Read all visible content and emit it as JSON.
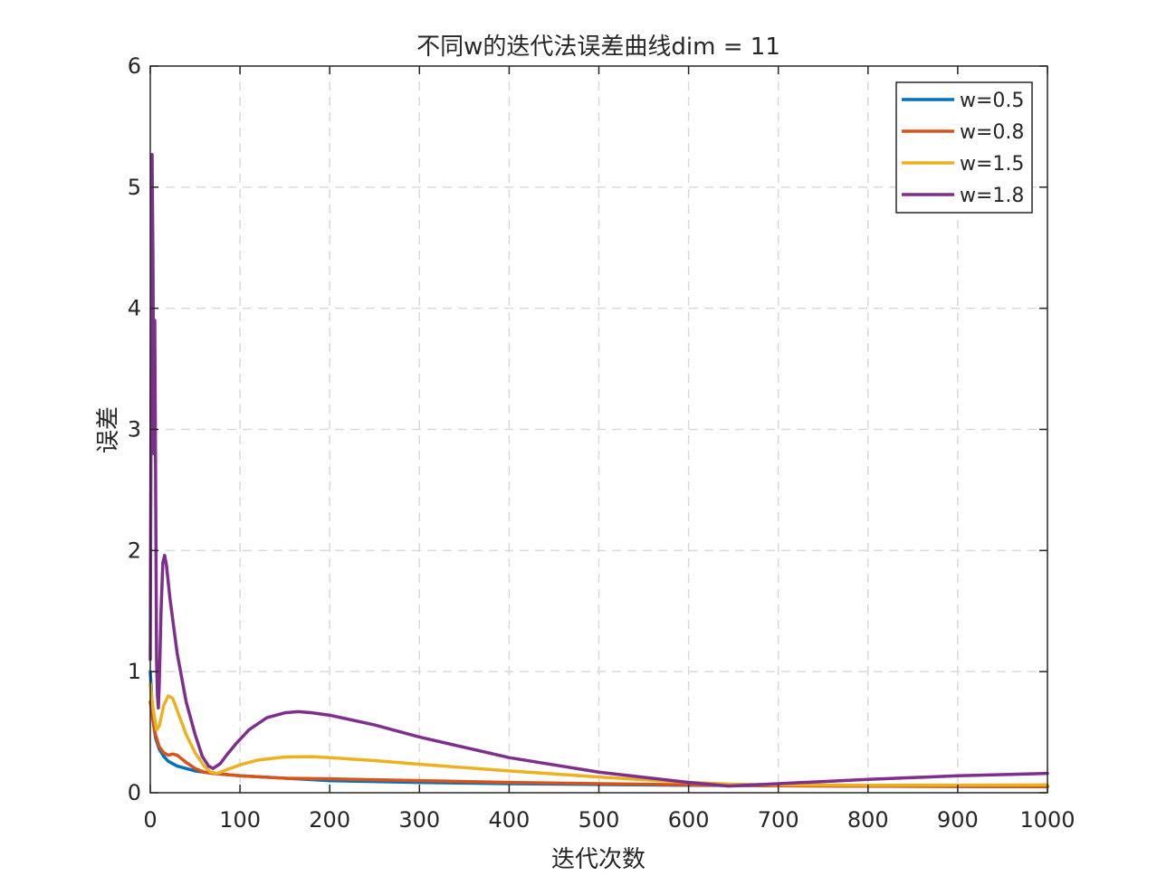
{
  "chart_data": {
    "type": "line",
    "title": "不同w的迭代法误差曲线dim = 11",
    "xlabel": "迭代次数",
    "ylabel": "误差",
    "xlim": [
      0,
      1000
    ],
    "ylim": [
      0,
      6
    ],
    "xticks": [
      "0",
      "100",
      "200",
      "300",
      "400",
      "500",
      "600",
      "700",
      "800",
      "900",
      "1000"
    ],
    "yticks": [
      "0",
      "1",
      "2",
      "3",
      "4",
      "5",
      "6"
    ],
    "grid": true,
    "legend_position": "top-right",
    "series": [
      {
        "name": "w=0.5",
        "color": "#0072BD",
        "points": [
          [
            0,
            1.0
          ],
          [
            3,
            0.6
          ],
          [
            6,
            0.45
          ],
          [
            10,
            0.36
          ],
          [
            15,
            0.3
          ],
          [
            20,
            0.26
          ],
          [
            30,
            0.22
          ],
          [
            40,
            0.2
          ],
          [
            50,
            0.18
          ],
          [
            70,
            0.16
          ],
          [
            100,
            0.14
          ],
          [
            150,
            0.12
          ],
          [
            200,
            0.1
          ],
          [
            300,
            0.085
          ],
          [
            400,
            0.075
          ],
          [
            500,
            0.068
          ],
          [
            600,
            0.062
          ],
          [
            700,
            0.058
          ],
          [
            800,
            0.055
          ],
          [
            900,
            0.052
          ],
          [
            1000,
            0.05
          ]
        ]
      },
      {
        "name": "w=0.8",
        "color": "#D95319",
        "points": [
          [
            0,
            0.75
          ],
          [
            5,
            0.5
          ],
          [
            10,
            0.38
          ],
          [
            15,
            0.33
          ],
          [
            20,
            0.31
          ],
          [
            25,
            0.32
          ],
          [
            30,
            0.31
          ],
          [
            40,
            0.25
          ],
          [
            50,
            0.2
          ],
          [
            60,
            0.17
          ],
          [
            70,
            0.16
          ],
          [
            100,
            0.14
          ],
          [
            150,
            0.12
          ],
          [
            200,
            0.115
          ],
          [
            300,
            0.1
          ],
          [
            400,
            0.085
          ],
          [
            500,
            0.075
          ],
          [
            600,
            0.065
          ],
          [
            700,
            0.058
          ],
          [
            800,
            0.054
          ],
          [
            900,
            0.052
          ],
          [
            1000,
            0.05
          ]
        ]
      },
      {
        "name": "w=1.5",
        "color": "#EDB120",
        "points": [
          [
            0,
            0.9
          ],
          [
            3,
            0.7
          ],
          [
            7,
            0.52
          ],
          [
            10,
            0.55
          ],
          [
            15,
            0.72
          ],
          [
            20,
            0.8
          ],
          [
            25,
            0.78
          ],
          [
            30,
            0.68
          ],
          [
            40,
            0.48
          ],
          [
            50,
            0.33
          ],
          [
            60,
            0.22
          ],
          [
            67,
            0.17
          ],
          [
            75,
            0.16
          ],
          [
            85,
            0.19
          ],
          [
            100,
            0.23
          ],
          [
            120,
            0.27
          ],
          [
            150,
            0.295
          ],
          [
            180,
            0.298
          ],
          [
            200,
            0.29
          ],
          [
            250,
            0.265
          ],
          [
            300,
            0.235
          ],
          [
            400,
            0.18
          ],
          [
            500,
            0.13
          ],
          [
            600,
            0.085
          ],
          [
            650,
            0.07
          ],
          [
            700,
            0.065
          ],
          [
            800,
            0.062
          ],
          [
            900,
            0.063
          ],
          [
            1000,
            0.065
          ]
        ]
      },
      {
        "name": "w=1.8",
        "color": "#7E2F8E",
        "points": [
          [
            0,
            1.1
          ],
          [
            1,
            3.5
          ],
          [
            2,
            5.27
          ],
          [
            3,
            4.4
          ],
          [
            4,
            2.8
          ],
          [
            5,
            3.9
          ],
          [
            6,
            2.5
          ],
          [
            7,
            1.1
          ],
          [
            8,
            0.8
          ],
          [
            9,
            0.7
          ],
          [
            10,
            0.9
          ],
          [
            12,
            1.5
          ],
          [
            14,
            1.9
          ],
          [
            16,
            1.96
          ],
          [
            18,
            1.88
          ],
          [
            22,
            1.6
          ],
          [
            30,
            1.15
          ],
          [
            40,
            0.75
          ],
          [
            50,
            0.48
          ],
          [
            58,
            0.3
          ],
          [
            65,
            0.22
          ],
          [
            70,
            0.2
          ],
          [
            78,
            0.24
          ],
          [
            85,
            0.31
          ],
          [
            95,
            0.4
          ],
          [
            110,
            0.52
          ],
          [
            130,
            0.62
          ],
          [
            150,
            0.66
          ],
          [
            165,
            0.67
          ],
          [
            180,
            0.66
          ],
          [
            200,
            0.64
          ],
          [
            250,
            0.56
          ],
          [
            300,
            0.46
          ],
          [
            400,
            0.29
          ],
          [
            500,
            0.17
          ],
          [
            600,
            0.085
          ],
          [
            645,
            0.055
          ],
          [
            700,
            0.075
          ],
          [
            800,
            0.11
          ],
          [
            900,
            0.14
          ],
          [
            1000,
            0.16
          ]
        ]
      }
    ]
  }
}
